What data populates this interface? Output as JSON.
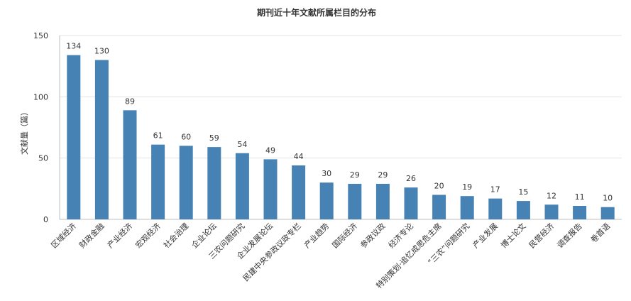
{
  "chart_data": {
    "type": "bar",
    "title": "期刊近十年文献所属栏目的分布",
    "ylabel": "文献量（篇）",
    "xlabel": "",
    "ylim": [
      0,
      150
    ],
    "yticks": [
      0,
      50,
      100,
      150
    ],
    "grid": true,
    "bar_color": "#4682b4",
    "categories": [
      "区域经济",
      "财政金融",
      "产业经济",
      "宏观经济",
      "社会治理",
      "企业论坛",
      "三农问题研究",
      "企业发展论坛",
      "民建中央参政议政专栏",
      "产业趋势",
      "国际经济",
      "参政议政",
      "经济专论",
      "特别策划·追忆成思危主席",
      "“三农”问题研究",
      "产业发展",
      "博士论文",
      "民营经济",
      "调查报告",
      "卷首语"
    ],
    "values": [
      134,
      130,
      89,
      61,
      60,
      59,
      54,
      49,
      44,
      30,
      29,
      29,
      26,
      20,
      19,
      17,
      15,
      12,
      11,
      10
    ]
  }
}
